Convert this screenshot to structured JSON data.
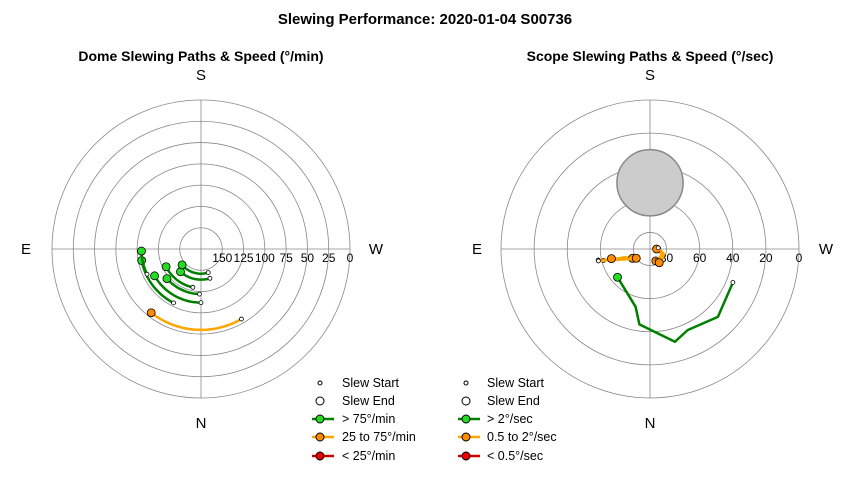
{
  "figure": {
    "title": "Slewing Performance: 2020-01-04 S00736"
  },
  "colors": {
    "fast": "#008000",
    "fast_marker": "#22dd22",
    "medium": "#ffa500",
    "medium_marker": "#ff8c00",
    "slow": "#cc0000",
    "slow_marker": "#ee0000",
    "grid": "#888888",
    "avoid_fill": "#cccccc",
    "avoid_edge": "#888888"
  },
  "chart_data": [
    {
      "type": "polar-line",
      "title": "Dome Slewing Paths & Speed (°/min)",
      "compass": {
        "top": "S",
        "right": "W",
        "bottom": "N",
        "left": "E"
      },
      "r_axis": {
        "inner_value": 175,
        "outer_value": 0,
        "ticks": [
          150,
          125,
          100,
          75,
          50,
          25,
          0
        ],
        "tick_labels": [
          "150",
          "125",
          "100",
          "75",
          "50",
          "25",
          "0"
        ]
      },
      "grid_rings": [
        25,
        50,
        75,
        100,
        125,
        150
      ],
      "legend": {
        "start": "Slew Start",
        "end": "Slew End",
        "fast": "> 75°/min",
        "medium": "25 to 75°/min",
        "slow": "< 25°/min"
      },
      "slews": [
        {
          "speed_class": "medium",
          "az_start": 142,
          "az_end": 210,
          "r_start": 80,
          "r_end": 80
        },
        {
          "speed_class": "fast",
          "az_start": 117,
          "az_end": 168,
          "r_start": 129,
          "r_end": 129
        },
        {
          "speed_class": "fast",
          "az_start": 101,
          "az_end": 153,
          "r_start": 104,
          "r_end": 104
        },
        {
          "speed_class": "fast",
          "az_start": 120,
          "az_end": 180,
          "r_start": 112,
          "r_end": 112
        },
        {
          "speed_class": "fast",
          "az_start": 131,
          "az_end": 178,
          "r_start": 122,
          "r_end": 122
        },
        {
          "speed_class": "fast",
          "az_start": 138,
          "az_end": 197,
          "r_start": 139,
          "r_end": 139
        },
        {
          "speed_class": "fast",
          "az_start": 130,
          "az_end": 197,
          "r_start": 146,
          "r_end": 146
        },
        {
          "speed_class": "fast",
          "az_start": 92,
          "az_end": 115,
          "r_start": 105,
          "r_end": 105
        }
      ]
    },
    {
      "type": "polar-line",
      "title": "Scope Slewing Paths & Speed (°/sec)",
      "compass": {
        "top": "S",
        "right": "W",
        "bottom": "N",
        "left": "E"
      },
      "r_axis": {
        "inner_value": 90,
        "outer_value": 0,
        "ticks": [
          80,
          60,
          40,
          20,
          0
        ],
        "tick_labels": [
          "80",
          "60",
          "40",
          "20",
          "0"
        ]
      },
      "grid_rings": [
        20,
        40,
        60,
        80
      ],
      "avoidance_zone": {
        "az": 0,
        "alt": 50,
        "radius_deg": 20
      },
      "legend": {
        "start": "Slew Start",
        "end": "Slew End",
        "fast": "> 2°/sec",
        "medium": "0.5 to 2°/sec",
        "slow": "< 0.5°/sec"
      },
      "slews": [
        {
          "speed_class": "fast",
          "path": [
            [
              131,
              64
            ],
            [
              166,
              54
            ],
            [
              172,
              44
            ],
            [
              195,
              32
            ],
            [
              205,
              36
            ],
            [
              225,
              32
            ],
            [
              248,
              36
            ]
          ]
        },
        {
          "speed_class": "medium",
          "path": [
            [
              118,
              78
            ],
            [
              108,
              74
            ],
            [
              105,
              66
            ],
            [
              102,
              58
            ]
          ]
        },
        {
          "speed_class": "medium",
          "path": [
            [
              124,
              80
            ],
            [
              112,
              73
            ],
            [
              106,
              66
            ],
            [
              104,
              61
            ]
          ]
        },
        {
          "speed_class": "medium",
          "path": [
            [
              206,
              82
            ],
            [
              225,
              80
            ],
            [
              245,
              81
            ],
            [
              285,
              86
            ]
          ]
        },
        {
          "speed_class": "medium",
          "path": [
            [
              270,
              86
            ],
            [
              245,
              82
            ],
            [
              212,
              82
            ]
          ]
        },
        {
          "speed_class": "medium",
          "path": [
            [
              214,
              80
            ],
            [
              250,
              81
            ],
            [
              278,
              85
            ]
          ]
        },
        {
          "speed_class": "medium",
          "path": [
            [
              104,
              66
            ],
            [
              105,
              64
            ],
            [
              103,
              58
            ]
          ]
        }
      ]
    }
  ]
}
